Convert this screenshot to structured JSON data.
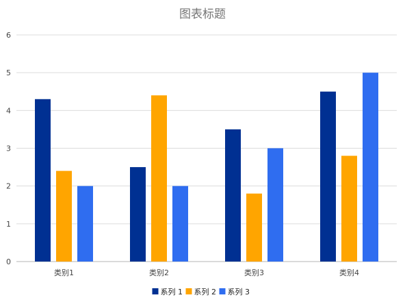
{
  "chart_data": {
    "type": "bar",
    "title": "图表标题",
    "xlabel": "",
    "ylabel": "",
    "categories": [
      "类别1",
      "类别2",
      "类别3",
      "类别4"
    ],
    "series": [
      {
        "name": "系列 1",
        "values": [
          4.3,
          2.5,
          3.5,
          4.5
        ],
        "color": "#003092"
      },
      {
        "name": "系列 2",
        "values": [
          2.4,
          4.4,
          1.8,
          2.8
        ],
        "color": "#FFA500"
      },
      {
        "name": "系列 3",
        "values": [
          2.0,
          2.0,
          3.0,
          5.0
        ],
        "color": "#2F6DF0"
      }
    ],
    "ylim": [
      0,
      6
    ],
    "yticks": [
      "0",
      "1",
      "2",
      "3",
      "4",
      "5",
      "6"
    ],
    "grid": true,
    "legend_position": "bottom"
  }
}
